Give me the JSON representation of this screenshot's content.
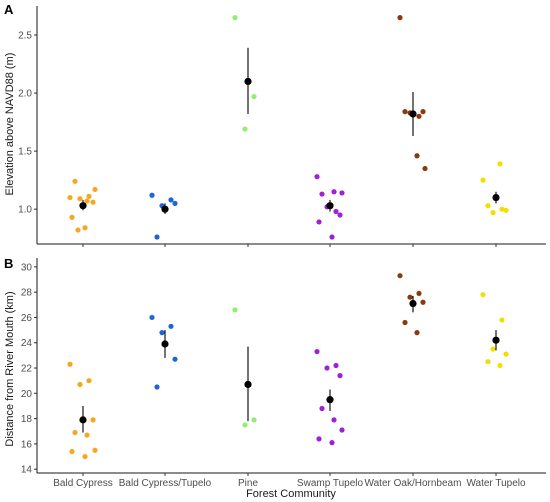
{
  "chart_data": [
    {
      "panel": "A",
      "type": "scatter",
      "ylabel": "Elevation above NAVD88 (m)",
      "ylim": [
        0.7,
        2.75
      ],
      "yticks": [
        1.0,
        1.5,
        2.0,
        2.5
      ],
      "ytick_labels": [
        "1.0",
        "1.5",
        "2.0",
        "2.5"
      ],
      "grid": false,
      "series": [
        {
          "category": "Bald Cypress",
          "color": "#f5a623",
          "points": [
            1.1,
            1.11,
            1.09,
            1.06,
            1.24,
            1.07,
            1.17,
            0.93,
            0.84,
            0.82
          ],
          "mean": 1.03,
          "error": [
            0.99,
            1.08
          ]
        },
        {
          "category": "Bald Cypress/Tupelo",
          "color": "#1f65d4",
          "points": [
            1.12,
            1.08,
            1.03,
            1.05,
            0.76
          ],
          "mean": 1.0,
          "error": [
            0.96,
            1.05
          ]
        },
        {
          "category": "Pine",
          "color": "#90ee70",
          "points": [
            2.65,
            1.97,
            1.69
          ],
          "mean": 2.1,
          "error": [
            1.82,
            2.39
          ]
        },
        {
          "category": "Swamp Tupelo",
          "color": "#a020d8",
          "points": [
            1.28,
            0.98,
            1.02,
            0.95,
            1.13,
            1.15,
            1.14,
            0.89,
            0.76
          ],
          "mean": 1.03,
          "error": [
            0.98,
            1.08
          ]
        },
        {
          "category": "Water Oak/Hornbeam",
          "color": "#8b3a0e",
          "points": [
            2.65,
            1.8,
            1.83,
            1.84,
            1.84,
            1.46,
            1.35
          ],
          "mean": 1.82,
          "error": [
            1.63,
            2.01
          ]
        },
        {
          "category": "Water Tupelo",
          "color": "#f0e000",
          "points": [
            1.25,
            1.0,
            0.97,
            0.99,
            1.03,
            1.39
          ],
          "mean": 1.1,
          "error": [
            1.05,
            1.15
          ]
        }
      ]
    },
    {
      "panel": "B",
      "type": "scatter",
      "ylabel": "Distance from River Mouth (km)",
      "xlabel": "Forest Community",
      "ylim": [
        13.7,
        30.7
      ],
      "yticks": [
        14,
        16,
        18,
        20,
        22,
        24,
        26,
        28,
        30
      ],
      "ytick_labels": [
        "14",
        "16",
        "18",
        "20",
        "22",
        "24",
        "26",
        "28",
        "30"
      ],
      "categories": [
        "Bald Cypress",
        "Bald Cypress/Tupelo",
        "Pine",
        "Swamp Tupelo",
        "Water Oak/Hornbeam",
        "Water Tupelo"
      ],
      "grid": false,
      "series": [
        {
          "category": "Bald Cypress",
          "color": "#f5a623",
          "points": [
            22.3,
            21.0,
            20.7,
            17.9,
            16.9,
            16.7,
            15.5,
            15.4,
            15.0
          ],
          "mean": 17.9,
          "error": [
            16.9,
            19.0
          ]
        },
        {
          "category": "Bald Cypress/Tupelo",
          "color": "#1f65d4",
          "points": [
            26.0,
            25.3,
            24.8,
            22.7,
            20.5
          ],
          "mean": 23.9,
          "error": [
            22.8,
            25.0
          ]
        },
        {
          "category": "Pine",
          "color": "#90ee70",
          "points": [
            26.6,
            17.9,
            17.5
          ],
          "mean": 20.7,
          "error": [
            17.8,
            23.7
          ]
        },
        {
          "category": "Swamp Tupelo",
          "color": "#a020d8",
          "points": [
            23.3,
            22.2,
            22.0,
            21.4,
            18.8,
            17.9,
            17.1,
            16.4,
            16.1
          ],
          "mean": 19.5,
          "error": [
            18.6,
            20.3
          ]
        },
        {
          "category": "Water Oak/Hornbeam",
          "color": "#8b3a0e",
          "points": [
            29.3,
            27.9,
            27.6,
            27.2,
            25.6,
            24.8
          ],
          "mean": 27.1,
          "error": [
            26.4,
            27.7
          ]
        },
        {
          "category": "Water Tupelo",
          "color": "#f0e000",
          "points": [
            27.8,
            25.8,
            23.5,
            23.1,
            22.5,
            22.2
          ],
          "mean": 24.2,
          "error": [
            23.4,
            25.0
          ]
        }
      ]
    }
  ]
}
